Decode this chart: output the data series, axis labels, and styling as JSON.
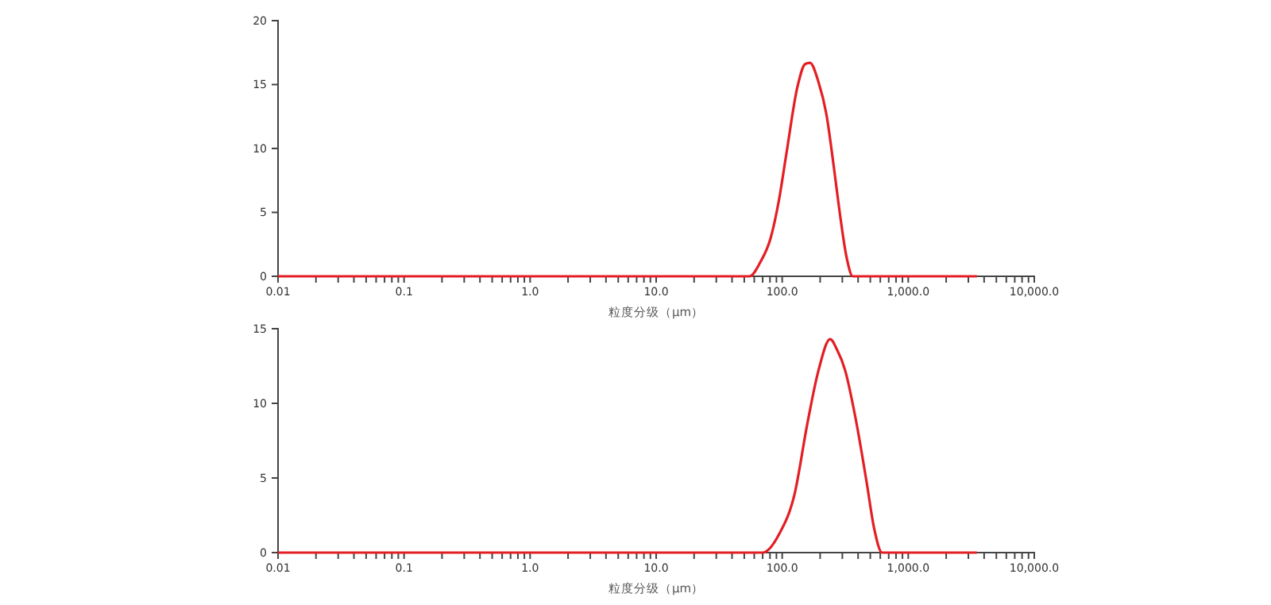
{
  "chart_data": [
    {
      "type": "line",
      "xlabel": "粒度分级（μm）",
      "log": "x",
      "xlim": [
        0.01,
        10000
      ],
      "ylim": [
        0,
        20
      ],
      "yticks": [
        0,
        5,
        10,
        15,
        20
      ],
      "xticks": [
        {
          "value": 0.01,
          "label": "0.01"
        },
        {
          "value": 0.1,
          "label": "0.1"
        },
        {
          "value": 1,
          "label": "1.0"
        },
        {
          "value": 10,
          "label": "10.0"
        },
        {
          "value": 100,
          "label": "100.0"
        },
        {
          "value": 1000,
          "label": "1,000.0"
        },
        {
          "value": 10000,
          "label": "10,000.0"
        },
        {
          "value": 0.02,
          "label": null
        },
        {
          "value": 0.03,
          "label": null
        },
        {
          "value": 0.04,
          "label": null
        },
        {
          "value": 0.05,
          "label": null
        },
        {
          "value": 0.06,
          "label": null
        },
        {
          "value": 0.07,
          "label": null
        },
        {
          "value": 0.08,
          "label": null
        },
        {
          "value": 0.09,
          "label": null
        },
        {
          "value": 0.2,
          "label": null
        },
        {
          "value": 0.3,
          "label": null
        },
        {
          "value": 0.4,
          "label": null
        },
        {
          "value": 0.5,
          "label": null
        },
        {
          "value": 0.6,
          "label": null
        },
        {
          "value": 0.7,
          "label": null
        },
        {
          "value": 0.8,
          "label": null
        },
        {
          "value": 0.9,
          "label": null
        },
        {
          "value": 2,
          "label": null
        },
        {
          "value": 3,
          "label": null
        },
        {
          "value": 4,
          "label": null
        },
        {
          "value": 5,
          "label": null
        },
        {
          "value": 6,
          "label": null
        },
        {
          "value": 7,
          "label": null
        },
        {
          "value": 8,
          "label": null
        },
        {
          "value": 9,
          "label": null
        },
        {
          "value": 20,
          "label": null
        },
        {
          "value": 30,
          "label": null
        },
        {
          "value": 40,
          "label": null
        },
        {
          "value": 50,
          "label": null
        },
        {
          "value": 60,
          "label": null
        },
        {
          "value": 70,
          "label": null
        },
        {
          "value": 80,
          "label": null
        },
        {
          "value": 90,
          "label": null
        },
        {
          "value": 200,
          "label": null
        },
        {
          "value": 300,
          "label": null
        },
        {
          "value": 400,
          "label": null
        },
        {
          "value": 500,
          "label": null
        },
        {
          "value": 600,
          "label": null
        },
        {
          "value": 700,
          "label": null
        },
        {
          "value": 800,
          "label": null
        },
        {
          "value": 900,
          "label": null
        },
        {
          "value": 2000,
          "label": null
        },
        {
          "value": 3000,
          "label": null
        },
        {
          "value": 4000,
          "label": null
        },
        {
          "value": 5000,
          "label": null
        },
        {
          "value": 6000,
          "label": null
        },
        {
          "value": 7000,
          "label": null
        },
        {
          "value": 8000,
          "label": null
        },
        {
          "value": 9000,
          "label": null
        }
      ],
      "series": [
        {
          "color": "#e31e24",
          "x": [
            0.01,
            1,
            55,
            67,
            81,
            94,
            108,
            132,
            152,
            166,
            194,
            224,
            258,
            285,
            324,
            363,
            1000,
            3500
          ],
          "values": [
            0,
            0,
            0,
            1.1,
            3.0,
            5.9,
            9.6,
            14.8,
            16.6,
            16.7,
            15.2,
            12.7,
            8.4,
            5.1,
            1.5,
            0,
            0,
            0
          ]
        }
      ]
    },
    {
      "type": "line",
      "xlabel": "粒度分级（μm）",
      "log": "x",
      "xlim": [
        0.01,
        10000
      ],
      "ylim": [
        0,
        15
      ],
      "yticks": [
        0,
        5,
        10,
        15
      ],
      "xticks": [
        {
          "value": 0.01,
          "label": "0.01"
        },
        {
          "value": 0.1,
          "label": "0.1"
        },
        {
          "value": 1,
          "label": "1.0"
        },
        {
          "value": 10,
          "label": "10.0"
        },
        {
          "value": 100,
          "label": "100.0"
        },
        {
          "value": 1000,
          "label": "1,000.0"
        },
        {
          "value": 10000,
          "label": "10,000.0"
        },
        {
          "value": 0.02,
          "label": null
        },
        {
          "value": 0.03,
          "label": null
        },
        {
          "value": 0.04,
          "label": null
        },
        {
          "value": 0.05,
          "label": null
        },
        {
          "value": 0.06,
          "label": null
        },
        {
          "value": 0.07,
          "label": null
        },
        {
          "value": 0.08,
          "label": null
        },
        {
          "value": 0.09,
          "label": null
        },
        {
          "value": 0.2,
          "label": null
        },
        {
          "value": 0.3,
          "label": null
        },
        {
          "value": 0.4,
          "label": null
        },
        {
          "value": 0.5,
          "label": null
        },
        {
          "value": 0.6,
          "label": null
        },
        {
          "value": 0.7,
          "label": null
        },
        {
          "value": 0.8,
          "label": null
        },
        {
          "value": 0.9,
          "label": null
        },
        {
          "value": 2,
          "label": null
        },
        {
          "value": 3,
          "label": null
        },
        {
          "value": 4,
          "label": null
        },
        {
          "value": 5,
          "label": null
        },
        {
          "value": 6,
          "label": null
        },
        {
          "value": 7,
          "label": null
        },
        {
          "value": 8,
          "label": null
        },
        {
          "value": 9,
          "label": null
        },
        {
          "value": 20,
          "label": null
        },
        {
          "value": 30,
          "label": null
        },
        {
          "value": 40,
          "label": null
        },
        {
          "value": 50,
          "label": null
        },
        {
          "value": 60,
          "label": null
        },
        {
          "value": 70,
          "label": null
        },
        {
          "value": 80,
          "label": null
        },
        {
          "value": 90,
          "label": null
        },
        {
          "value": 200,
          "label": null
        },
        {
          "value": 300,
          "label": null
        },
        {
          "value": 400,
          "label": null
        },
        {
          "value": 500,
          "label": null
        },
        {
          "value": 600,
          "label": null
        },
        {
          "value": 700,
          "label": null
        },
        {
          "value": 800,
          "label": null
        },
        {
          "value": 900,
          "label": null
        },
        {
          "value": 2000,
          "label": null
        },
        {
          "value": 3000,
          "label": null
        },
        {
          "value": 4000,
          "label": null
        },
        {
          "value": 5000,
          "label": null
        },
        {
          "value": 6000,
          "label": null
        },
        {
          "value": 7000,
          "label": null
        },
        {
          "value": 8000,
          "label": null
        },
        {
          "value": 9000,
          "label": null
        }
      ],
      "series": [
        {
          "color": "#e31e24",
          "x": [
            0.01,
            1,
            70,
            94,
            126,
            158,
            194,
            240,
            272,
            316,
            382,
            466,
            537,
            620,
            1000,
            3500
          ],
          "values": [
            0,
            0,
            0,
            1.2,
            4.0,
            8.6,
            12.2,
            14.3,
            13.6,
            12.2,
            9.0,
            4.8,
            1.6,
            0,
            0,
            0
          ]
        }
      ]
    }
  ]
}
